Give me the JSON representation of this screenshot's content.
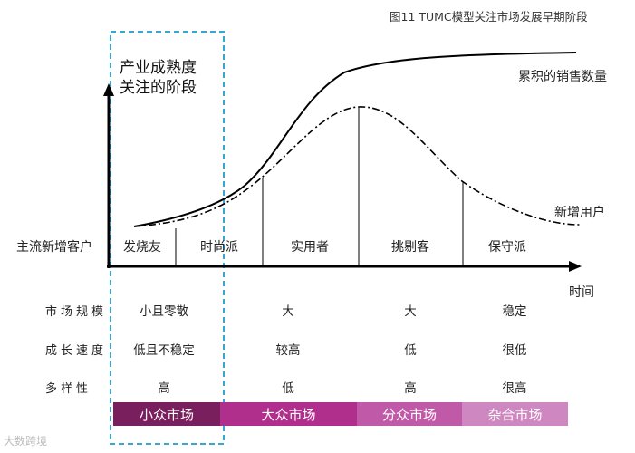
{
  "figure_title": "图11 TUMC模型关注市场发展早期阶段",
  "focus_box": {
    "line1": "产业成熟度",
    "line2": "关注的阶段"
  },
  "curves": {
    "cumulative": "累积的销售数量",
    "new_users": "新增用户"
  },
  "row_header": "主流新增客户",
  "x_axis_label": "时间",
  "segments": [
    "发烧友",
    "时尚派",
    "实用者",
    "挑剔客",
    "保守派"
  ],
  "attributes": [
    {
      "label": "市场规模",
      "values": [
        "小且零散",
        "大",
        "大",
        "稳定"
      ]
    },
    {
      "label": "成长速度",
      "values": [
        "低且不稳定",
        "较高",
        "低",
        "很低"
      ]
    },
    {
      "label": "多样性",
      "values": [
        "高",
        "低",
        "高",
        "很高"
      ]
    }
  ],
  "markets": [
    {
      "label": "小众市场",
      "color": "#7a1f5e"
    },
    {
      "label": "大众市场",
      "color": "#b02f8c"
    },
    {
      "label": "分众市场",
      "color": "#c05aa8"
    },
    {
      "label": "杂合市场",
      "color": "#cf87c1"
    }
  ],
  "watermark": "大数跨境"
}
